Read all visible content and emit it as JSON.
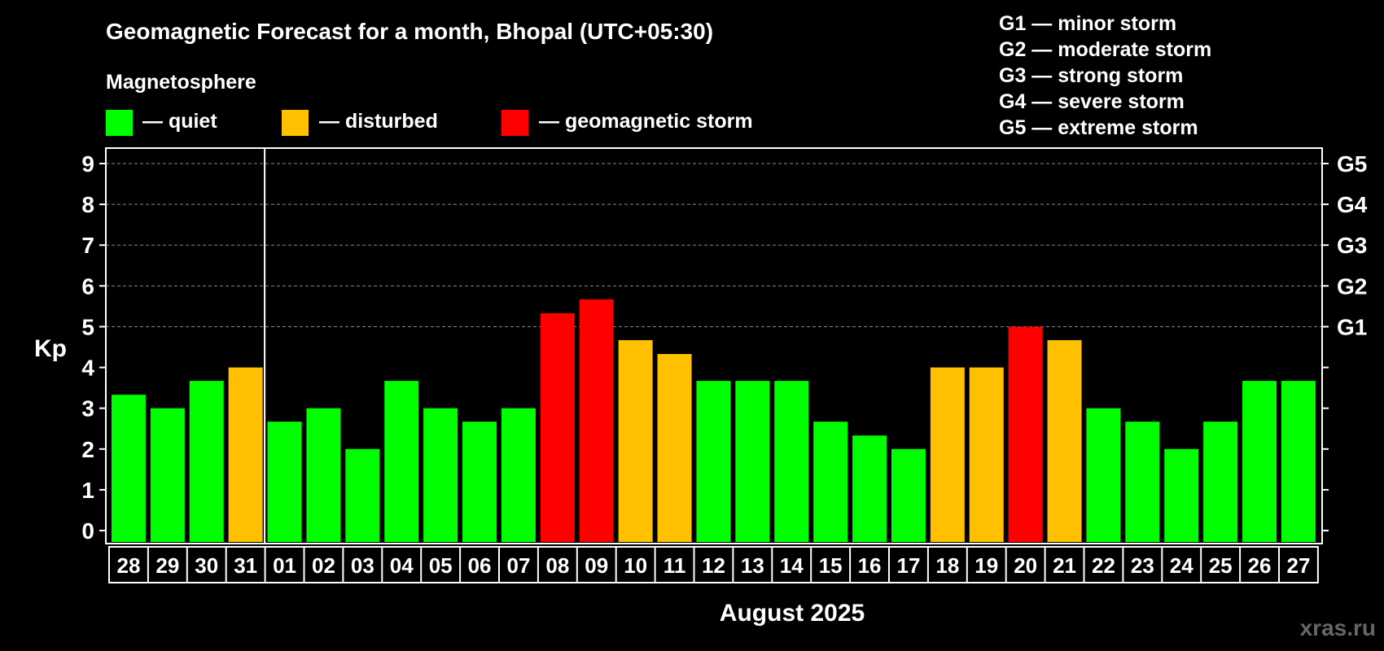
{
  "chart_data": {
    "type": "bar",
    "title": "Geomagnetic Forecast for a month, Bhopal (UTC+05:30)",
    "legend_title": "Magnetosphere",
    "legend": [
      {
        "label": "— quiet",
        "color": "#00ff00"
      },
      {
        "label": "— disturbed",
        "color": "#ffc000"
      },
      {
        "label": "— geomagnetic storm",
        "color": "#ff0000"
      }
    ],
    "g_scale": [
      "G1 — minor storm",
      "G2 — moderate storm",
      "G3 — strong storm",
      "G4 — severe storm",
      "G5 — extreme storm"
    ],
    "ylabel": "Kp",
    "ylim": [
      0,
      9
    ],
    "yticks": [
      "0",
      "1",
      "2",
      "3",
      "4",
      "5",
      "6",
      "7",
      "8",
      "9"
    ],
    "right_ticks": [
      {
        "kp": 5,
        "label": "G1"
      },
      {
        "kp": 6,
        "label": "G2"
      },
      {
        "kp": 7,
        "label": "G3"
      },
      {
        "kp": 8,
        "label": "G4"
      },
      {
        "kp": 9,
        "label": "G5"
      }
    ],
    "xlabel": "August 2025",
    "month_boundary_after_index": 3,
    "categories": [
      "28",
      "29",
      "30",
      "31",
      "01",
      "02",
      "03",
      "04",
      "05",
      "06",
      "07",
      "08",
      "09",
      "10",
      "11",
      "12",
      "13",
      "14",
      "15",
      "16",
      "17",
      "18",
      "19",
      "20",
      "21",
      "22",
      "23",
      "24",
      "25",
      "26",
      "27"
    ],
    "values": [
      3.33,
      3.0,
      3.67,
      4.0,
      2.67,
      3.0,
      2.0,
      3.67,
      3.0,
      2.67,
      3.0,
      5.33,
      5.67,
      4.67,
      4.33,
      3.67,
      3.67,
      3.67,
      2.67,
      2.33,
      2.0,
      4.0,
      4.0,
      5.0,
      4.67,
      3.0,
      2.67,
      2.0,
      2.67,
      3.67,
      3.67
    ],
    "status": [
      "quiet",
      "quiet",
      "quiet",
      "disturbed",
      "quiet",
      "quiet",
      "quiet",
      "quiet",
      "quiet",
      "quiet",
      "quiet",
      "storm",
      "storm",
      "disturbed",
      "disturbed",
      "quiet",
      "quiet",
      "quiet",
      "quiet",
      "quiet",
      "quiet",
      "disturbed",
      "disturbed",
      "storm",
      "disturbed",
      "quiet",
      "quiet",
      "quiet",
      "quiet",
      "quiet",
      "quiet"
    ],
    "colors": {
      "quiet": "#00ff00",
      "disturbed": "#ffc000",
      "storm": "#ff0000",
      "grid": "#888888",
      "frame": "#ffffff",
      "watermark": "#666666"
    },
    "watermark": "xras.ru"
  }
}
